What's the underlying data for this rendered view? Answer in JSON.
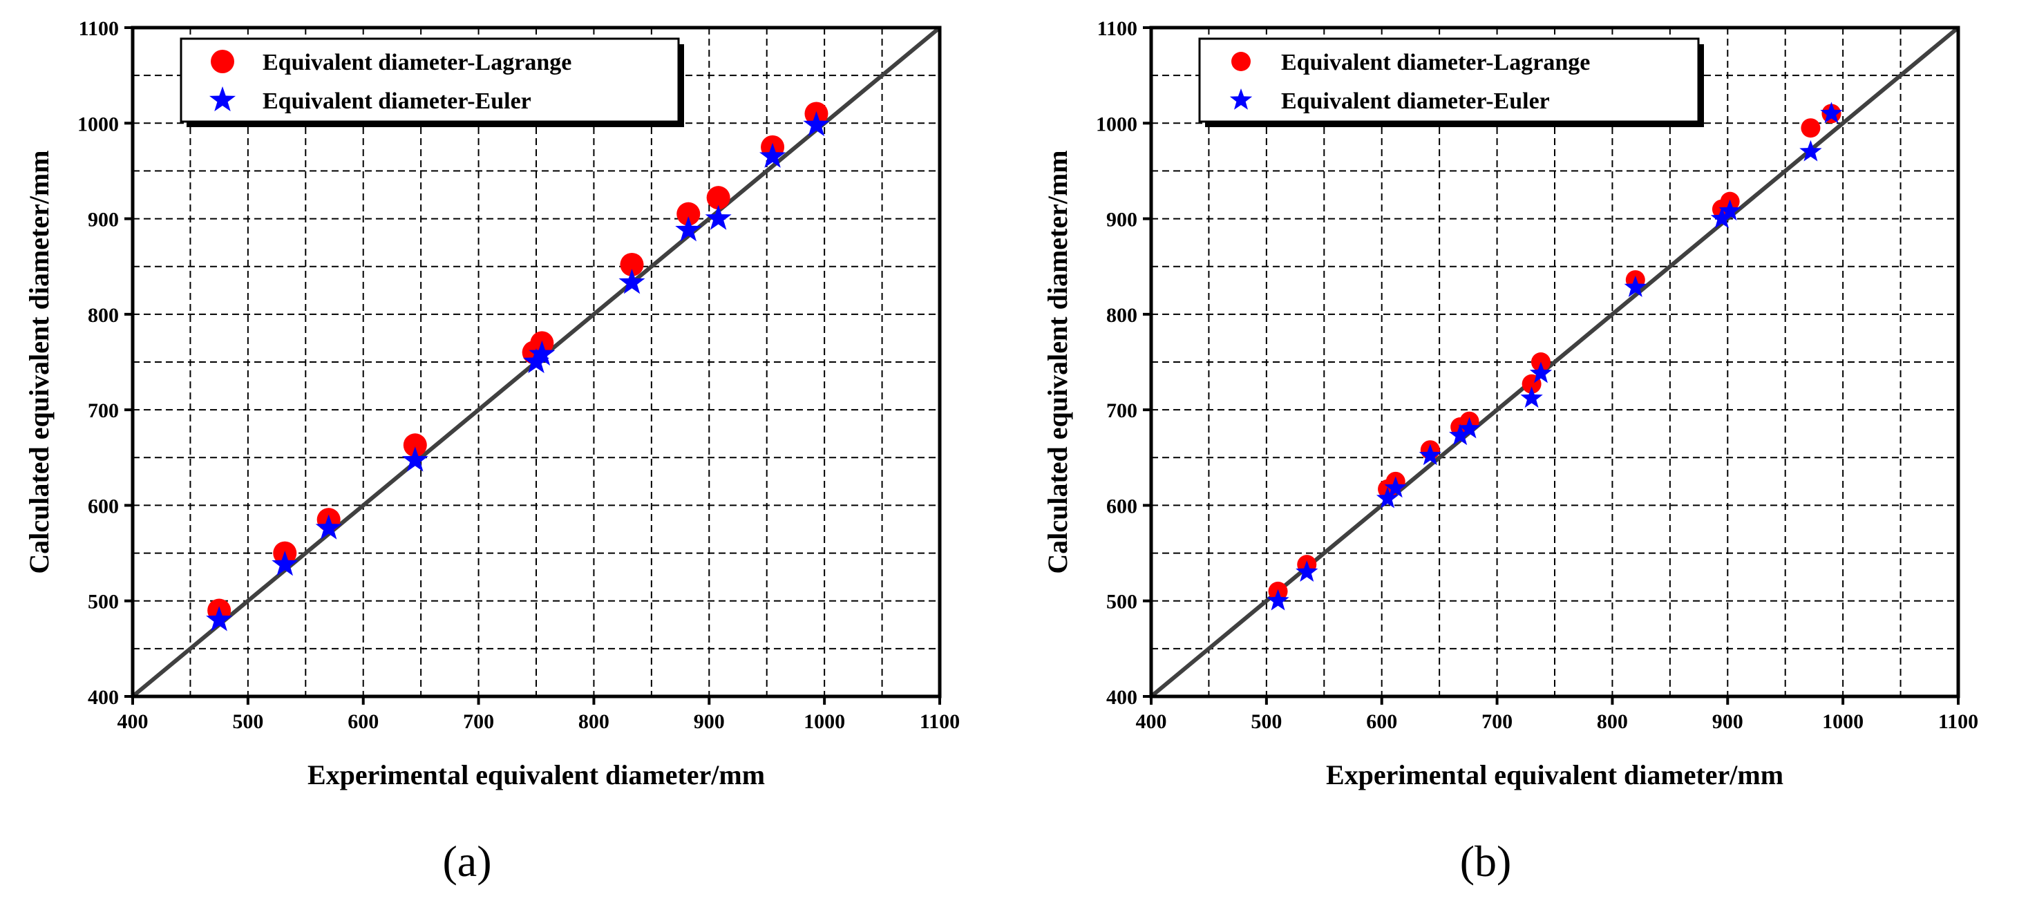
{
  "chart_data": [
    {
      "type": "scatter",
      "panel": "a",
      "caption": "(a)",
      "xlabel": "Experimental equivalent diameter/mm",
      "ylabel": "Calculated equivalent diameter/mm",
      "xlim": [
        400,
        1100
      ],
      "ylim": [
        400,
        1100
      ],
      "xticks": [
        400,
        500,
        600,
        700,
        800,
        900,
        1000,
        1100
      ],
      "yticks": [
        400,
        500,
        600,
        700,
        800,
        900,
        1000,
        1100
      ],
      "tick_labels_x": [
        "400",
        "500",
        "600",
        "700",
        "800",
        "900",
        "1000",
        "1100"
      ],
      "tick_labels_y": [
        "400",
        "500",
        "600",
        "700",
        "800",
        "900",
        "1000",
        "1100"
      ],
      "grid": "dashed, every 50",
      "reference_line": [
        [
          400,
          400
        ],
        [
          1100,
          1100
        ]
      ],
      "legend_position": "top-left",
      "series": [
        {
          "name": "Equivalent diameter-Lagrange",
          "marker": "circle",
          "color": "#ff0000",
          "x": [
            475,
            532,
            570,
            645,
            748,
            755,
            833,
            882,
            908,
            955,
            993
          ],
          "y": [
            490,
            550,
            585,
            663,
            760,
            770,
            852,
            905,
            922,
            975,
            1010
          ]
        },
        {
          "name": "Equivalent diameter-Euler",
          "marker": "star",
          "color": "#0000ff",
          "x": [
            475,
            532,
            570,
            645,
            750,
            755,
            833,
            882,
            908,
            955,
            993
          ],
          "y": [
            480,
            538,
            576,
            647,
            750,
            758,
            833,
            888,
            900,
            965,
            998
          ]
        }
      ]
    },
    {
      "type": "scatter",
      "panel": "b",
      "caption": "(b)",
      "xlabel": "Experimental equivalent diameter/mm",
      "ylabel": "Calculated equivalent diameter/mm",
      "xlim": [
        400,
        1100
      ],
      "ylim": [
        400,
        1100
      ],
      "xticks": [
        400,
        500,
        600,
        700,
        800,
        900,
        1000,
        1100
      ],
      "yticks": [
        400,
        500,
        600,
        700,
        800,
        900,
        1000,
        1100
      ],
      "tick_labels_x": [
        "400",
        "500",
        "600",
        "700",
        "800",
        "900",
        "1000",
        "1100"
      ],
      "tick_labels_y": [
        "400",
        "500",
        "600",
        "700",
        "800",
        "900",
        "1000",
        "1100"
      ],
      "grid": "dashed, every 50",
      "reference_line": [
        [
          400,
          400
        ],
        [
          1100,
          1100
        ]
      ],
      "legend_position": "top-left",
      "series": [
        {
          "name": "Equivalent diameter-Lagrange",
          "marker": "circle",
          "color": "#ff0000",
          "x": [
            510,
            535,
            605,
            612,
            642,
            668,
            676,
            730,
            738,
            820,
            895,
            902,
            972,
            990
          ],
          "y": [
            510,
            538,
            617,
            625,
            658,
            682,
            688,
            727,
            750,
            836,
            910,
            918,
            995,
            1010
          ]
        },
        {
          "name": "Equivalent diameter-Euler",
          "marker": "star",
          "color": "#0000ff",
          "x": [
            510,
            535,
            605,
            612,
            642,
            668,
            676,
            730,
            738,
            820,
            895,
            902,
            972,
            990
          ],
          "y": [
            500,
            530,
            607,
            618,
            652,
            673,
            680,
            712,
            738,
            828,
            900,
            908,
            970,
            1010
          ]
        }
      ]
    }
  ]
}
